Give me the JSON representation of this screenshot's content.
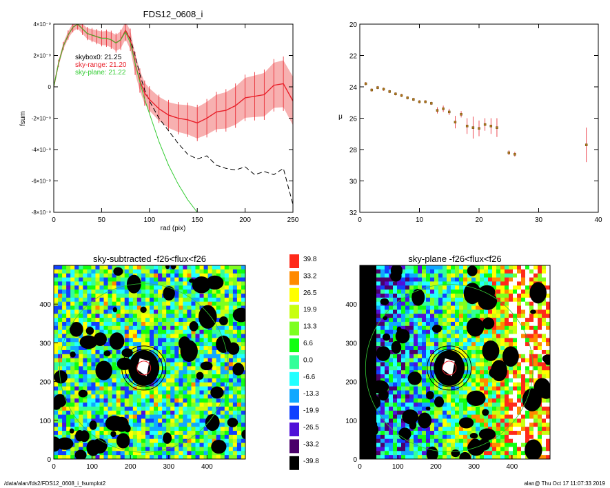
{
  "charts": [
    {
      "type": "line",
      "title": "FDS12_0608_i",
      "xlabel": "rad (pix)",
      "ylabel": "fsum",
      "xlim": [
        0,
        250
      ],
      "ylim": [
        -8e-09,
        4e-09
      ],
      "x_ticks": [
        "0",
        "50",
        "100",
        "150",
        "200",
        "250"
      ],
      "y_ticks": [
        "4×10⁻⁹",
        "2×10⁻⁹",
        "0",
        "-2×10⁻⁹",
        "-4×10⁻⁹",
        "-6×10⁻⁹",
        "-8×10⁻⁹"
      ],
      "legend": [
        {
          "text": "skybox0: 21.25",
          "color": "#000000"
        },
        {
          "text": "sky-range: 21.20",
          "color": "#e8202a"
        },
        {
          "text": "sky-plane: 21.22",
          "color": "#33cc33"
        }
      ],
      "series": [
        {
          "color": "#000000",
          "style": "dashed",
          "x": [
            0,
            5,
            10,
            15,
            20,
            25,
            30,
            35,
            40,
            45,
            50,
            55,
            60,
            65,
            70,
            75,
            80,
            85,
            90,
            95,
            100,
            110,
            120,
            130,
            140,
            150,
            160,
            170,
            180,
            190,
            200,
            210,
            220,
            230,
            240,
            250
          ],
          "y": [
            0,
            1.5e-09,
            2.6e-09,
            3.3e-09,
            3.8e-09,
            4e-09,
            3.7e-09,
            3.4e-09,
            3.3e-09,
            3.2e-09,
            3.1e-09,
            3.1e-09,
            3e-09,
            2.8e-09,
            3e-09,
            3.6e-09,
            3.1e-09,
            2e-09,
            8e-10,
            -2e-10,
            -9e-10,
            -2e-09,
            -2.8e-09,
            -3.6e-09,
            -4.3e-09,
            -4.6e-09,
            -4.4e-09,
            -5e-09,
            -5.2e-09,
            -5.3e-09,
            -5.1e-09,
            -5.6e-09,
            -5.4e-09,
            -5.6e-09,
            -5.2e-09,
            -7.5e-09
          ]
        },
        {
          "color": "#e8202a",
          "style": "solid",
          "x": [
            0,
            5,
            10,
            15,
            20,
            25,
            30,
            35,
            40,
            45,
            50,
            55,
            60,
            65,
            70,
            75,
            80,
            85,
            90,
            95,
            100,
            110,
            120,
            130,
            140,
            150,
            160,
            170,
            180,
            190,
            200,
            210,
            220,
            230,
            240,
            250
          ],
          "y": [
            0,
            1.5e-09,
            2.6e-09,
            3.3e-09,
            3.8e-09,
            4e-09,
            3.7e-09,
            3.4e-09,
            3.3e-09,
            3.2e-09,
            3.1e-09,
            3.1e-09,
            3e-09,
            2.8e-09,
            3e-09,
            3.6e-09,
            3e-09,
            1.5e-09,
            4e-10,
            -4e-10,
            -8e-10,
            -1.4e-09,
            -1.8e-09,
            -2e-09,
            -2.1e-09,
            -2.3e-09,
            -2e-09,
            -1.6e-09,
            -1.5e-09,
            -1.2e-09,
            -7e-10,
            -6e-10,
            -5e-10,
            1e-10,
            2e-10,
            -9e-10
          ]
        },
        {
          "color": "#33cc33",
          "style": "solid",
          "x": [
            0,
            5,
            10,
            15,
            20,
            25,
            30,
            35,
            40,
            45,
            50,
            55,
            60,
            65,
            70,
            75,
            80,
            85,
            90,
            95,
            100,
            110,
            120,
            130,
            140,
            150
          ],
          "y": [
            0,
            1.5e-09,
            2.6e-09,
            3.3e-09,
            3.8e-09,
            4e-09,
            3.7e-09,
            3.4e-09,
            3.3e-09,
            3.2e-09,
            3.1e-09,
            3.1e-09,
            3e-09,
            2.8e-09,
            3e-09,
            3.5e-09,
            2.8e-09,
            1.5e-09,
            3e-10,
            -8e-10,
            -1.7e-09,
            -3.5e-09,
            -5e-09,
            -6.2e-09,
            -7.2e-09,
            -8e-09
          ]
        }
      ]
    },
    {
      "type": "scatter",
      "title": "",
      "xlabel": "",
      "ylabel": "μ",
      "xlim": [
        0,
        40
      ],
      "ylim": [
        32,
        20
      ],
      "x_ticks": [
        "0",
        "10",
        "20",
        "30",
        "40"
      ],
      "y_ticks": [
        "20",
        "22",
        "24",
        "26",
        "28",
        "30",
        "32"
      ],
      "points": [
        {
          "x": 1,
          "y": 23.8,
          "err": 0.1
        },
        {
          "x": 2,
          "y": 24.2,
          "err": 0.1
        },
        {
          "x": 3,
          "y": 24.05,
          "err": 0.1
        },
        {
          "x": 4,
          "y": 24.15,
          "err": 0.1
        },
        {
          "x": 5,
          "y": 24.3,
          "err": 0.1
        },
        {
          "x": 6,
          "y": 24.45,
          "err": 0.1
        },
        {
          "x": 7,
          "y": 24.55,
          "err": 0.1
        },
        {
          "x": 8,
          "y": 24.7,
          "err": 0.1
        },
        {
          "x": 9,
          "y": 24.8,
          "err": 0.1
        },
        {
          "x": 10,
          "y": 24.95,
          "err": 0.1
        },
        {
          "x": 11,
          "y": 24.95,
          "err": 0.1
        },
        {
          "x": 12,
          "y": 25.05,
          "err": 0.1
        },
        {
          "x": 13,
          "y": 25.5,
          "err": 0.2
        },
        {
          "x": 14,
          "y": 25.4,
          "err": 0.2
        },
        {
          "x": 15,
          "y": 25.6,
          "err": 0.2
        },
        {
          "x": 16,
          "y": 26.25,
          "err": 0.4
        },
        {
          "x": 17,
          "y": 25.75,
          "err": 0.2
        },
        {
          "x": 18,
          "y": 26.5,
          "err": 0.5
        },
        {
          "x": 19,
          "y": 26.6,
          "err": 0.7
        },
        {
          "x": 20,
          "y": 26.65,
          "err": 0.5
        },
        {
          "x": 21,
          "y": 26.4,
          "err": 0.4
        },
        {
          "x": 22,
          "y": 26.5,
          "err": 0.5
        },
        {
          "x": 23,
          "y": 26.6,
          "err": 0.6
        },
        {
          "x": 25,
          "y": 28.2,
          "err": 0.15
        },
        {
          "x": 26,
          "y": 28.3,
          "err": 0.15
        },
        {
          "x": 38,
          "y": 27.7,
          "err": 1.1
        }
      ]
    },
    {
      "type": "heatmap",
      "title": "sky-subtracted -f26<flux<f26",
      "xlim": [
        0,
        500
      ],
      "ylim": [
        0,
        500
      ],
      "x_ticks": [
        "0",
        "100",
        "200",
        "300",
        "400"
      ],
      "y_ticks": [
        "0",
        "100",
        "200",
        "300",
        "400"
      ]
    },
    {
      "type": "heatmap",
      "title": "sky-plane -f26<flux<f26",
      "xlim": [
        0,
        500
      ],
      "ylim": [
        0,
        500
      ],
      "x_ticks": [
        "0",
        "100",
        "200",
        "300",
        "400"
      ],
      "y_ticks": [
        "0",
        "100",
        "200",
        "300",
        "400"
      ]
    }
  ],
  "colorbar": {
    "labels": [
      "39.8",
      "33.2",
      "26.5",
      "19.9",
      "13.3",
      "6.6",
      "0.0",
      "-6.6",
      "-13.3",
      "-19.9",
      "-26.5",
      "-33.2",
      "-39.8"
    ],
    "colors": [
      "#ff2a1a",
      "#ff8a00",
      "#ffff00",
      "#c8ff10",
      "#7dff20",
      "#10ff10",
      "#33ff99",
      "#22ffff",
      "#10a8ff",
      "#1040ff",
      "#5010d8",
      "#4a006a",
      "#000000"
    ]
  },
  "footer": {
    "left": "/data/alan/fds2/FDS12_0608_i_fsumplot2",
    "right": "alan@  Thu Oct 17 11:07:33 2019"
  }
}
